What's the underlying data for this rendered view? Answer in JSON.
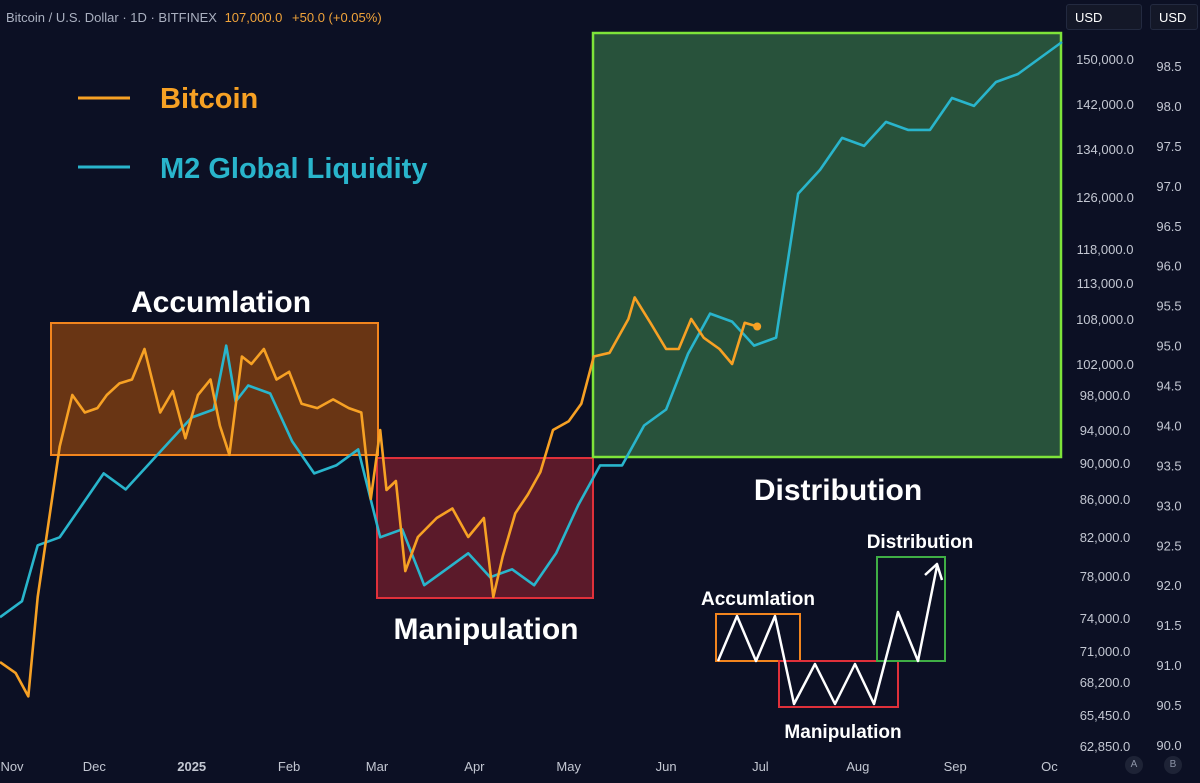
{
  "header": {
    "symbol_text": "Bitcoin / U.S. Dollar · 1D · BITFINEX",
    "price": "107,000.0",
    "change": "+50.0 (+0.05%)",
    "currency_left": "USD",
    "currency_right": "USD"
  },
  "axis_buttons": {
    "a": "A",
    "b": "B"
  },
  "chart_data": {
    "type": "line",
    "legend_placement": "top-left",
    "grid": false,
    "x_ticks": [
      "Nov",
      "Dec",
      "2025",
      "Feb",
      "Mar",
      "Apr",
      "May",
      "Jun",
      "Jul",
      "Aug",
      "Sep",
      "Oc"
    ],
    "y_left_ticks": [
      "150,000.0",
      "142,000.0",
      "134,000.0",
      "126,000.0",
      "118,000.0",
      "113,000.0",
      "108,000.0",
      "102,000.0",
      "98,000.0",
      "94,000.0",
      "90,000.0",
      "86,000.0",
      "82,000.0",
      "78,000.0",
      "74,000.0",
      "71,000.0",
      "68,200.0",
      "65,450.0",
      "62,850.0"
    ],
    "y_right_ticks": [
      "98.5",
      "98.0",
      "97.5",
      "97.0",
      "96.5",
      "96.0",
      "95.5",
      "95.0",
      "94.5",
      "94.0",
      "93.5",
      "93.0",
      "92.5",
      "92.0",
      "91.5",
      "91.0",
      "90.5",
      "90.0"
    ],
    "series": [
      {
        "name": "Bitcoin",
        "color": "#f7a124",
        "dates": [
          "2024-11-01",
          "2024-11-06",
          "2024-11-10",
          "2024-11-13",
          "2024-11-20",
          "2024-11-24",
          "2024-11-28",
          "2024-12-02",
          "2024-12-05",
          "2024-12-09",
          "2024-12-13",
          "2024-12-17",
          "2024-12-22",
          "2024-12-26",
          "2024-12-30",
          "2025-01-03",
          "2025-01-07",
          "2025-01-10",
          "2025-01-13",
          "2025-01-17",
          "2025-01-20",
          "2025-01-24",
          "2025-01-28",
          "2025-02-01",
          "2025-02-05",
          "2025-02-10",
          "2025-02-15",
          "2025-02-20",
          "2025-02-24",
          "2025-02-27",
          "2025-03-02",
          "2025-03-04",
          "2025-03-07",
          "2025-03-10",
          "2025-03-14",
          "2025-03-20",
          "2025-03-25",
          "2025-03-30",
          "2025-04-04",
          "2025-04-07",
          "2025-04-10",
          "2025-04-14",
          "2025-04-18",
          "2025-04-22",
          "2025-04-26",
          "2025-05-01",
          "2025-05-05",
          "2025-05-09",
          "2025-05-14",
          "2025-05-20",
          "2025-05-22",
          "2025-05-27",
          "2025-06-01",
          "2025-06-05",
          "2025-06-09",
          "2025-06-13",
          "2025-06-18",
          "2025-06-22",
          "2025-06-26",
          "2025-06-30"
        ],
        "values": [
          70000,
          69000,
          67000,
          76000,
          92000,
          98000,
          96000,
          96500,
          98000,
          99500,
          100000,
          104000,
          96000,
          98500,
          93000,
          98000,
          100000,
          94500,
          91000,
          103000,
          102000,
          104000,
          100000,
          101000,
          97000,
          96500,
          97500,
          96500,
          96000,
          86000,
          94000,
          87000,
          88000,
          78500,
          82000,
          84000,
          85000,
          82000,
          84000,
          76000,
          80000,
          84500,
          86500,
          89000,
          94000,
          95000,
          97000,
          103000,
          103500,
          108000,
          111000,
          107500,
          104000,
          104000,
          108000,
          105500,
          104000,
          102000,
          107500,
          107000
        ]
      },
      {
        "name": "M2 Global Liquidity",
        "color": "#29b5cc",
        "dates": [
          "2024-11-01",
          "2024-11-08",
          "2024-11-13",
          "2024-11-20",
          "2024-11-27",
          "2024-12-04",
          "2024-12-11",
          "2024-12-18",
          "2024-12-25",
          "2025-01-01",
          "2025-01-08",
          "2025-01-12",
          "2025-01-15",
          "2025-01-19",
          "2025-01-26",
          "2025-02-02",
          "2025-02-09",
          "2025-02-16",
          "2025-02-23",
          "2025-03-02",
          "2025-03-09",
          "2025-03-16",
          "2025-03-23",
          "2025-03-30",
          "2025-04-06",
          "2025-04-13",
          "2025-04-20",
          "2025-04-27",
          "2025-05-04",
          "2025-05-11",
          "2025-05-18",
          "2025-05-25",
          "2025-06-01",
          "2025-06-08",
          "2025-06-15",
          "2025-06-22",
          "2025-06-29",
          "2025-07-06",
          "2025-07-13",
          "2025-07-20",
          "2025-07-27",
          "2025-08-03",
          "2025-08-10",
          "2025-08-17",
          "2025-08-24",
          "2025-08-31",
          "2025-09-07",
          "2025-09-14",
          "2025-09-21",
          "2025-09-28",
          "2025-10-05"
        ],
        "values": [
          91.6,
          91.8,
          92.5,
          92.6,
          93.0,
          93.4,
          93.2,
          93.5,
          93.8,
          94.1,
          94.2,
          95.0,
          94.3,
          94.5,
          94.4,
          93.8,
          93.4,
          93.5,
          93.7,
          92.6,
          92.7,
          92.0,
          92.2,
          92.4,
          92.1,
          92.2,
          92.0,
          92.4,
          93.0,
          93.5,
          93.5,
          94.0,
          94.2,
          94.9,
          95.4,
          95.3,
          95.0,
          95.1,
          96.9,
          97.2,
          97.6,
          97.5,
          97.8,
          97.7,
          97.7,
          98.1,
          98.0,
          98.3,
          98.4,
          98.6,
          98.8
        ]
      }
    ],
    "annotations": {
      "accumulation": "Accumlation",
      "manipulation": "Manipulation",
      "distribution": "Distribution"
    },
    "mini_diagram": {
      "accumulation": "Accumlation",
      "manipulation": "Manipulation",
      "distribution": "Distribution"
    }
  }
}
